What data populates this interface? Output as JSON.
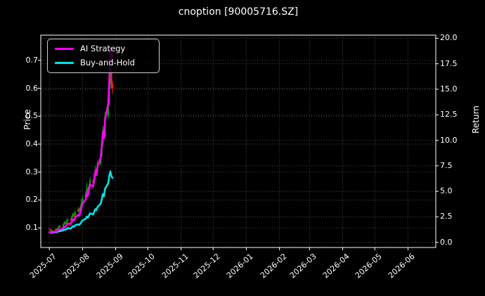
{
  "title": "cnoption [90005716.SZ]",
  "colors": {
    "background": "#000000",
    "spine": "#ffffff",
    "grid": "#4d4d4d",
    "tick_text": "#ffffff",
    "ai_line": "#ff00ff",
    "bh_line": "#00e5e5",
    "candle_up": "#00a000",
    "candle_down": "#ff2020",
    "legend_border": "#cfcfcf"
  },
  "chart_data": {
    "type": "line",
    "subtype": "candlestick-with-return-lines",
    "title": "cnoption [90005716.SZ]",
    "grid": "dotted-on",
    "legend_position": "upper-left",
    "left_axis": {
      "label": "Price",
      "ticks": [
        0.1,
        0.2,
        0.3,
        0.4,
        0.5,
        0.6,
        0.7
      ],
      "range": [
        0.03,
        0.79
      ]
    },
    "right_axis": {
      "label": "Return",
      "ticks": [
        0.0,
        2.5,
        5.0,
        7.5,
        10.0,
        12.5,
        15.0,
        17.5,
        20.0
      ],
      "range": [
        -0.5,
        20.3
      ]
    },
    "x_origin": "2025-07-01",
    "xlim_days": [
      -8,
      361
    ],
    "x_tick_labels": [
      "2025-07",
      "2025-08",
      "2025-09",
      "2025-10",
      "2025-11",
      "2025-12",
      "2026-01",
      "2026-02",
      "2026-03",
      "2026-04",
      "2026-05",
      "2026-06"
    ],
    "legend": [
      {
        "name": "AI Strategy",
        "color": "#ff00ff"
      },
      {
        "name": "Buy-and-Hold",
        "color": "#00e5e5"
      }
    ],
    "dates": [
      "2025-07-01",
      "2025-07-02",
      "2025-07-03",
      "2025-07-04",
      "2025-07-07",
      "2025-07-08",
      "2025-07-09",
      "2025-07-10",
      "2025-07-11",
      "2025-07-14",
      "2025-07-15",
      "2025-07-16",
      "2025-07-17",
      "2025-07-18",
      "2025-07-21",
      "2025-07-22",
      "2025-07-23",
      "2025-07-24",
      "2025-07-25",
      "2025-07-28",
      "2025-07-29",
      "2025-07-30",
      "2025-07-31",
      "2025-08-01",
      "2025-08-04",
      "2025-08-05",
      "2025-08-06",
      "2025-08-07",
      "2025-08-08",
      "2025-08-11",
      "2025-08-12",
      "2025-08-13",
      "2025-08-14",
      "2025-08-15",
      "2025-08-18",
      "2025-08-19",
      "2025-08-20",
      "2025-08-21",
      "2025-08-22",
      "2025-08-25",
      "2025-08-26",
      "2025-08-27",
      "2025-08-28",
      "2025-08-29"
    ],
    "candles_ohlc": [
      [
        0.096,
        0.098,
        0.092,
        0.095
      ],
      [
        0.095,
        0.097,
        0.091,
        0.093
      ],
      [
        0.093,
        0.094,
        0.085,
        0.087
      ],
      [
        0.087,
        0.093,
        0.086,
        0.091
      ],
      [
        0.091,
        0.098,
        0.09,
        0.096
      ],
      [
        0.096,
        0.098,
        0.092,
        0.094
      ],
      [
        0.094,
        0.103,
        0.093,
        0.1
      ],
      [
        0.1,
        0.11,
        0.099,
        0.107
      ],
      [
        0.107,
        0.109,
        0.101,
        0.104
      ],
      [
        0.104,
        0.115,
        0.103,
        0.112
      ],
      [
        0.112,
        0.124,
        0.11,
        0.12
      ],
      [
        0.12,
        0.122,
        0.113,
        0.116
      ],
      [
        0.116,
        0.128,
        0.114,
        0.124
      ],
      [
        0.124,
        0.136,
        0.122,
        0.132
      ],
      [
        0.132,
        0.134,
        0.124,
        0.128
      ],
      [
        0.128,
        0.145,
        0.126,
        0.14
      ],
      [
        0.14,
        0.155,
        0.137,
        0.15
      ],
      [
        0.15,
        0.153,
        0.14,
        0.145
      ],
      [
        0.145,
        0.163,
        0.142,
        0.158
      ],
      [
        0.158,
        0.175,
        0.154,
        0.168
      ],
      [
        0.168,
        0.171,
        0.157,
        0.162
      ],
      [
        0.162,
        0.182,
        0.159,
        0.175
      ],
      [
        0.175,
        0.205,
        0.171,
        0.19
      ],
      [
        0.19,
        0.215,
        0.185,
        0.205
      ],
      [
        0.205,
        0.23,
        0.2,
        0.22
      ],
      [
        0.22,
        0.262,
        0.215,
        0.24
      ],
      [
        0.24,
        0.246,
        0.222,
        0.23
      ],
      [
        0.23,
        0.258,
        0.226,
        0.25
      ],
      [
        0.25,
        0.282,
        0.245,
        0.27
      ],
      [
        0.27,
        0.275,
        0.25,
        0.26
      ],
      [
        0.26,
        0.298,
        0.255,
        0.29
      ],
      [
        0.29,
        0.322,
        0.283,
        0.31
      ],
      [
        0.31,
        0.316,
        0.292,
        0.3
      ],
      [
        0.3,
        0.342,
        0.295,
        0.33
      ],
      [
        0.33,
        0.372,
        0.324,
        0.36
      ],
      [
        0.36,
        0.412,
        0.352,
        0.4
      ],
      [
        0.4,
        0.465,
        0.392,
        0.45
      ],
      [
        0.45,
        0.459,
        0.42,
        0.43
      ],
      [
        0.43,
        0.515,
        0.424,
        0.5
      ],
      [
        0.5,
        0.572,
        0.49,
        0.55
      ],
      [
        0.55,
        0.642,
        0.54,
        0.62
      ],
      [
        0.62,
        0.75,
        0.6,
        0.66
      ],
      [
        0.66,
        0.672,
        0.598,
        0.615
      ],
      [
        0.615,
        0.626,
        0.58,
        0.6
      ]
    ],
    "series": [
      {
        "name": "AI Strategy",
        "axis": "return",
        "color": "#ff00ff",
        "values": [
          1.0,
          0.99,
          0.95,
          1.0,
          1.08,
          1.06,
          1.15,
          1.28,
          1.24,
          1.4,
          1.55,
          1.5,
          1.68,
          1.85,
          1.8,
          2.02,
          2.25,
          2.16,
          2.45,
          2.7,
          2.6,
          2.95,
          3.4,
          3.8,
          4.2,
          4.8,
          4.55,
          5.1,
          5.7,
          5.45,
          6.2,
          6.9,
          6.6,
          7.4,
          8.3,
          9.4,
          10.8,
          10.2,
          12.0,
          13.6,
          15.8,
          19.0,
          17.8,
          18.4
        ]
      },
      {
        "name": "Buy-and-Hold",
        "axis": "return",
        "color": "#00e5e5",
        "values": [
          1.0,
          0.98,
          0.92,
          0.96,
          1.01,
          0.99,
          1.05,
          1.13,
          1.09,
          1.18,
          1.26,
          1.22,
          1.31,
          1.39,
          1.35,
          1.47,
          1.58,
          1.53,
          1.66,
          1.77,
          1.71,
          1.84,
          2.0,
          2.16,
          2.32,
          2.53,
          2.42,
          2.63,
          2.84,
          2.74,
          3.05,
          3.26,
          3.16,
          3.47,
          3.79,
          4.21,
          4.74,
          4.53,
          5.26,
          5.79,
          6.53,
          6.95,
          6.47,
          6.32
        ]
      }
    ]
  }
}
